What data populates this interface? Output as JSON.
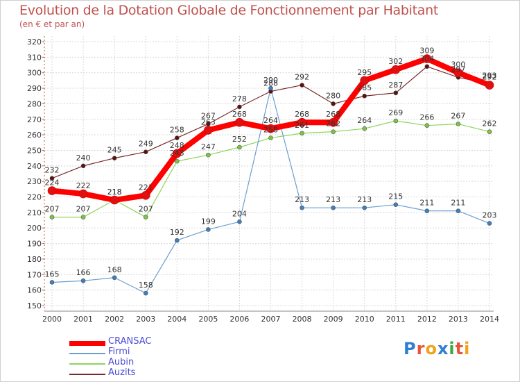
{
  "title": "Evolution de la Dotation Globale de Fonctionnement par Habitant",
  "subtitle": "(en € et par an)",
  "logo_text": "Proxiti",
  "colors": {
    "title": "#c0504d",
    "grid": "#d8d8d8",
    "axis": "#888888",
    "plot_bg": "#ffffff",
    "legend_text": "#4a4ad8"
  },
  "chart_data": {
    "type": "line",
    "title": "Evolution de la Dotation Globale de Fonctionnement par Habitant",
    "ylabel": "(en € et par an)",
    "xlabel": "",
    "x": [
      "2000",
      "2001",
      "2002",
      "2003",
      "2004",
      "2005",
      "2006",
      "2007",
      "2008",
      "2009",
      "2010",
      "2011",
      "2012",
      "2013",
      "2014"
    ],
    "ylim": [
      150,
      320
    ],
    "yticks": [
      150,
      160,
      170,
      180,
      190,
      200,
      210,
      220,
      230,
      240,
      250,
      260,
      270,
      280,
      290,
      300,
      310,
      320
    ],
    "grid": true,
    "legend_position": "bottom-left",
    "series": [
      {
        "name": "Auzits",
        "color": "#7a2a2a",
        "point_color": "#5a1010",
        "width": 1.2,
        "marker": 3,
        "values": [
          232,
          240,
          245,
          249,
          258,
          267,
          278,
          288,
          292,
          280,
          285,
          287,
          304,
          297,
          293
        ]
      },
      {
        "name": "Aubin",
        "color": "#8ed45a",
        "point_color": "#7cc542",
        "width": 1.2,
        "marker": 3,
        "values": [
          207,
          207,
          218,
          207,
          243,
          247,
          252,
          258,
          261,
          262,
          264,
          269,
          266,
          267,
          262
        ]
      },
      {
        "name": "Firmi",
        "color": "#6a9ed0",
        "point_color": "#3d7fc0",
        "width": 1.2,
        "marker": 3,
        "values": [
          165,
          166,
          168,
          158,
          192,
          199,
          204,
          290,
          213,
          213,
          213,
          215,
          211,
          211,
          203
        ]
      },
      {
        "name": "CRANSAC",
        "color": "#ff0000",
        "point_color": "#e01010",
        "width": 8,
        "marker": 6,
        "values": [
          224,
          222,
          218,
          221,
          248,
          263,
          268,
          264,
          268,
          268,
          295,
          302,
          309,
          300,
          292
        ]
      }
    ],
    "labels": {
      "Auzits": [
        "232",
        "240",
        "245",
        "249",
        "258",
        "267",
        "278",
        "288",
        "292",
        "280",
        "285",
        "287",
        "304",
        "297",
        "293"
      ],
      "Aubin": [
        "207",
        "207",
        "218",
        "207",
        "243",
        "247",
        "252",
        "258",
        "261",
        "262",
        "264",
        "269",
        "266",
        "267",
        "262"
      ],
      "Firmi": [
        "165",
        "166",
        "168",
        "158",
        "192",
        "199",
        "204",
        "290",
        "213",
        "213",
        "213",
        "215",
        "211",
        "211",
        "203"
      ],
      "CRANSAC": [
        "224",
        "222",
        "218",
        "221",
        "248",
        "263",
        "268",
        "264",
        "268",
        "268",
        "295",
        "302",
        "309",
        "300",
        "292"
      ]
    },
    "legend": [
      "CRANSAC",
      "Firmi",
      "Aubin",
      "Auzits"
    ]
  }
}
